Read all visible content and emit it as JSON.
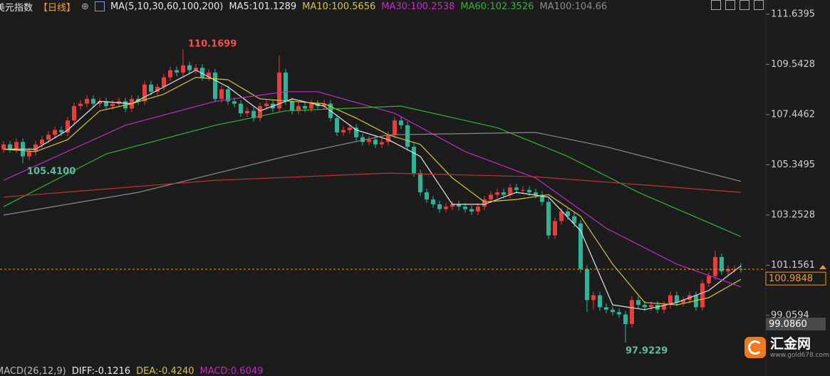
{
  "chart_data": {
    "type": "candlestick",
    "title": "美元指数",
    "period": "【日线】",
    "ma_label": "MA(5,10,30,60,100,200)",
    "ylim": [
      96.53,
      112.23
    ],
    "xlim": [
      -0.556,
      118.9
    ],
    "yticks": [
      111.6395,
      109.5428,
      107.4462,
      105.3495,
      103.2528,
      101.1561,
      99.0594
    ],
    "up_color": "#ee3b3b",
    "down_color": "#2db59a",
    "open": [
      106.0,
      106.2,
      106.0,
      106.3,
      105.7,
      105.9,
      106.2,
      106.4,
      106.6,
      106.8,
      106.7,
      107.2,
      107.8,
      107.9,
      108.1,
      107.9,
      108.0,
      107.8,
      107.9,
      108.0,
      107.7,
      108.1,
      108.0,
      108.7,
      108.4,
      108.6,
      109.0,
      109.3,
      109.2,
      109.5,
      109.3,
      109.4,
      109.0,
      109.2,
      108.1,
      108.5,
      108.0,
      107.9,
      107.5,
      107.6,
      107.3,
      107.8,
      107.9,
      107.7,
      109.2,
      108.0,
      107.6,
      107.8,
      107.7,
      107.9,
      107.8,
      107.9,
      107.3,
      106.7,
      106.8,
      106.9,
      106.5,
      106.3,
      106.4,
      106.2,
      106.3,
      106.6,
      107.2,
      107.0,
      106.1,
      105.0,
      104.2,
      103.9,
      103.7,
      103.5,
      103.6,
      103.7,
      103.6,
      103.5,
      103.4,
      103.6,
      103.9,
      104.1,
      104.2,
      104.1,
      104.4,
      104.3,
      104.3,
      104.2,
      104.1,
      103.8,
      102.4,
      103.0,
      103.4,
      103.2,
      102.9,
      101.0,
      99.7,
      99.9,
      99.4,
      99.3,
      99.2,
      99.1,
      98.7,
      99.7,
      99.5,
      99.4,
      99.5,
      99.3,
      99.5,
      99.9,
      99.6,
      99.7,
      99.9,
      99.4,
      100.4,
      100.7,
      101.5,
      100.9,
      101.0,
      101.0
    ],
    "high": [
      106.35,
      106.35,
      106.45,
      106.45,
      106.05,
      106.35,
      106.55,
      106.75,
      106.95,
      106.95,
      107.35,
      107.95,
      108.05,
      108.25,
      108.25,
      108.15,
      108.15,
      108.05,
      108.15,
      108.15,
      108.25,
      108.25,
      108.85,
      108.85,
      108.75,
      109.15,
      109.45,
      109.45,
      110.1699,
      109.65,
      109.55,
      109.55,
      109.35,
      109.35,
      108.65,
      108.65,
      108.15,
      108.05,
      107.75,
      107.75,
      107.95,
      108.05,
      108.05,
      109.9,
      109.35,
      108.15,
      107.95,
      107.95,
      108.05,
      108.05,
      108.05,
      108.05,
      107.45,
      106.95,
      107.05,
      107.05,
      106.65,
      106.55,
      106.55,
      106.45,
      106.75,
      107.35,
      107.35,
      107.15,
      106.25,
      105.15,
      104.35,
      104.05,
      103.85,
      103.75,
      103.85,
      103.85,
      103.75,
      103.65,
      103.75,
      104.05,
      104.25,
      104.35,
      104.35,
      104.55,
      104.55,
      104.45,
      104.45,
      104.35,
      104.25,
      103.95,
      103.15,
      103.55,
      103.55,
      103.35,
      103.05,
      101.15,
      100.05,
      100.05,
      99.55,
      99.45,
      99.35,
      99.25,
      99.85,
      99.85,
      99.65,
      99.65,
      99.65,
      99.65,
      100.05,
      100.05,
      99.85,
      100.05,
      100.05,
      100.55,
      100.85,
      101.75,
      101.65,
      101.15,
      101.15,
      101.25
    ],
    "low": [
      105.85,
      105.85,
      105.85,
      105.41,
      105.55,
      105.75,
      106.05,
      106.25,
      106.45,
      106.55,
      106.55,
      107.05,
      107.65,
      107.75,
      107.75,
      107.75,
      107.65,
      107.65,
      107.75,
      107.55,
      107.55,
      107.85,
      107.85,
      108.25,
      108.25,
      108.45,
      108.85,
      109.05,
      109.05,
      109.15,
      109.15,
      108.85,
      108.85,
      107.95,
      107.95,
      107.85,
      107.75,
      107.35,
      107.35,
      107.15,
      107.15,
      107.65,
      107.55,
      107.55,
      107.85,
      107.45,
      107.45,
      107.55,
      107.55,
      107.65,
      107.65,
      107.15,
      106.55,
      106.55,
      106.65,
      106.35,
      106.15,
      106.15,
      106.05,
      106.05,
      106.15,
      106.45,
      106.85,
      105.95,
      104.85,
      104.05,
      103.75,
      103.55,
      103.35,
      103.35,
      103.45,
      103.45,
      103.35,
      103.25,
      103.25,
      103.45,
      103.75,
      103.95,
      103.95,
      103.95,
      104.15,
      104.15,
      104.05,
      103.95,
      103.65,
      102.25,
      102.25,
      102.85,
      103.05,
      102.75,
      100.85,
      99.2,
      99.3,
      99.25,
      99.15,
      99.05,
      98.95,
      97.9229,
      98.55,
      99.35,
      99.25,
      99.25,
      99.15,
      99.15,
      99.35,
      99.45,
      99.45,
      99.55,
      99.25,
      99.25,
      100.25,
      100.55,
      100.75,
      100.75,
      100.85,
      100.85
    ],
    "close": [
      106.2,
      106.0,
      106.3,
      105.7,
      105.9,
      106.2,
      106.4,
      106.6,
      106.8,
      106.7,
      107.2,
      107.8,
      107.9,
      108.1,
      107.9,
      108.0,
      107.8,
      107.9,
      108.0,
      107.7,
      108.1,
      108.0,
      108.7,
      108.4,
      108.6,
      109.0,
      109.3,
      109.2,
      109.5,
      109.3,
      109.4,
      109.0,
      109.2,
      108.1,
      108.5,
      108.0,
      107.9,
      107.5,
      107.6,
      107.3,
      107.8,
      107.9,
      107.7,
      109.2,
      108.0,
      107.6,
      107.8,
      107.7,
      107.9,
      107.8,
      107.9,
      107.3,
      106.7,
      106.8,
      106.9,
      106.5,
      106.3,
      106.4,
      106.2,
      106.3,
      106.6,
      107.2,
      107.0,
      106.1,
      105.0,
      104.2,
      103.9,
      103.7,
      103.5,
      103.6,
      103.7,
      103.6,
      103.5,
      103.4,
      103.6,
      103.9,
      104.1,
      104.2,
      104.1,
      104.4,
      104.3,
      104.3,
      104.2,
      104.1,
      103.8,
      102.4,
      103.0,
      103.4,
      103.2,
      102.9,
      101.0,
      99.7,
      99.9,
      99.4,
      99.3,
      99.2,
      99.1,
      98.7,
      99.7,
      99.5,
      99.4,
      99.5,
      99.3,
      99.5,
      99.9,
      99.6,
      99.7,
      99.9,
      99.4,
      100.4,
      100.7,
      101.5,
      100.9,
      101.0,
      101.0,
      100.9848
    ],
    "series": [
      {
        "name": "MA5:101.1289",
        "color": "#e6e6e6",
        "x": [
          0,
          5,
          10,
          15,
          20,
          25,
          30,
          35,
          40,
          45,
          50,
          55,
          60,
          65,
          70,
          75,
          80,
          85,
          90,
          95,
          100,
          105,
          110,
          115
        ],
        "values": [
          106.0,
          106.0,
          106.8,
          108.0,
          107.9,
          108.6,
          109.3,
          108.6,
          107.6,
          108.1,
          107.8,
          106.8,
          106.4,
          105.7,
          103.7,
          103.7,
          104.2,
          104.0,
          102.6,
          99.5,
          99.3,
          99.6,
          100.1,
          101.1289
        ]
      },
      {
        "name": "MA10:100.5656",
        "color": "#d8c52a",
        "x": [
          0,
          5,
          10,
          15,
          20,
          25,
          30,
          35,
          40,
          45,
          50,
          55,
          60,
          65,
          70,
          75,
          80,
          85,
          90,
          95,
          100,
          105,
          110,
          115
        ],
        "values": [
          106.0,
          105.9,
          106.4,
          107.6,
          107.9,
          108.3,
          109.0,
          108.9,
          108.1,
          108.0,
          107.9,
          107.3,
          106.6,
          106.2,
          104.8,
          103.8,
          103.9,
          104.1,
          103.2,
          101.2,
          99.6,
          99.5,
          99.8,
          100.5656
        ]
      },
      {
        "name": "MA30:100.2538",
        "color": "#c52ac5",
        "x": [
          0,
          19,
          33,
          44,
          49,
          61,
          72,
          83,
          94,
          105,
          115
        ],
        "values": [
          104.7,
          107.0,
          108.0,
          108.4,
          108.4,
          107.5,
          105.9,
          104.8,
          102.7,
          101.2,
          100.2538
        ]
      },
      {
        "name": "MA60:102.3526",
        "color": "#2fb52f",
        "x": [
          0,
          16,
          33,
          44,
          62,
          77,
          88,
          99,
          115
        ],
        "values": [
          103.6,
          105.8,
          107.0,
          107.6,
          107.8,
          106.9,
          105.7,
          104.2,
          102.3526
        ]
      },
      {
        "name": "MA100:104.66",
        "color": "#8a8a8a",
        "x": [
          0,
          21,
          44,
          60,
          83,
          94,
          115
        ],
        "values": [
          103.25,
          104.2,
          105.7,
          106.6,
          106.7,
          106.1,
          104.66
        ]
      },
      {
        "color": "#c33232",
        "x": [
          0,
          33,
          60,
          83,
          115
        ],
        "values": [
          104.0,
          104.7,
          105.0,
          104.85,
          104.2
        ]
      }
    ],
    "annotations": [
      "110.1699",
      "105.4100",
      "97.9229"
    ],
    "price_tags": [
      {
        "value": 100.9848,
        "label": "100.9848"
      },
      {
        "value": 99.086,
        "label": "99.0860"
      }
    ],
    "macd_legend": [
      "MACD(26,12,9)",
      "DIFF:-0.1216",
      "DEA:-0.4240",
      "MACD:0.6049"
    ]
  },
  "logo": {
    "name": "汇金网",
    "url": "www.gold678.com"
  }
}
